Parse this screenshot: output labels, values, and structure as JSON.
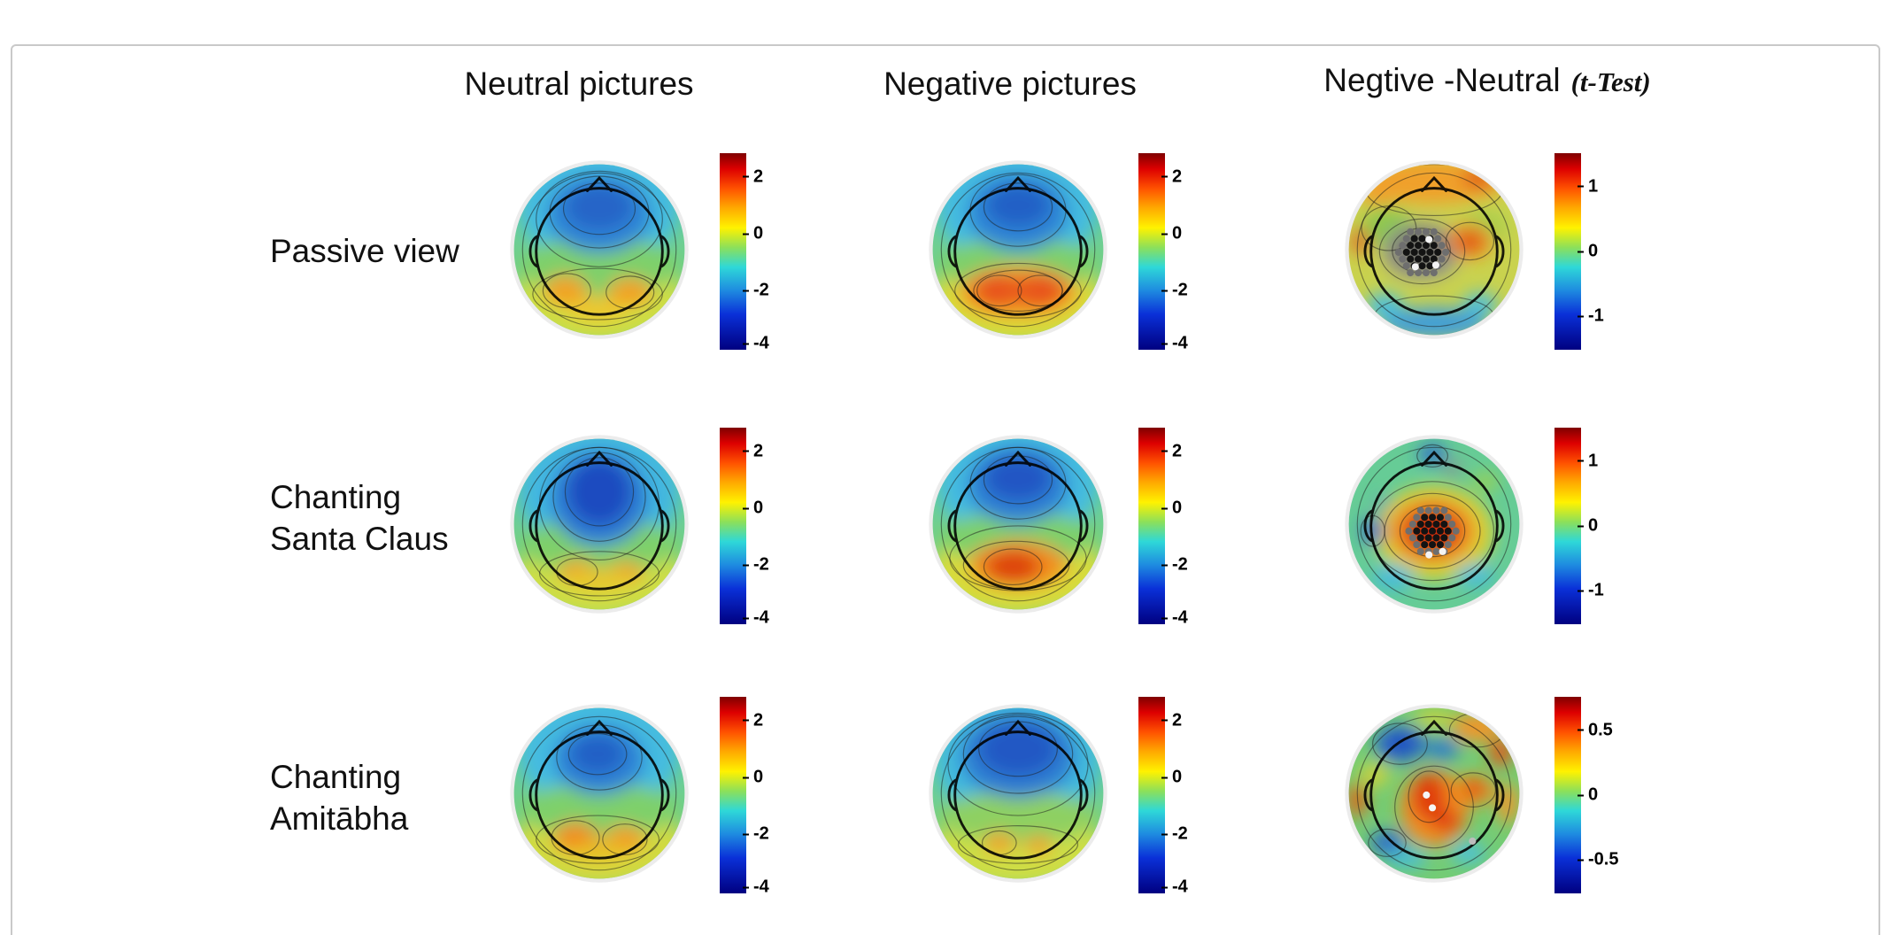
{
  "figure": {
    "background": "#ffffff",
    "frame_color": "#c9c9c9",
    "columns": [
      {
        "title": "Neutral pictures"
      },
      {
        "title": "Negative pictures"
      },
      {
        "title": "Negtive -Neutral",
        "annotation": "(t-Test)"
      }
    ],
    "rows": [
      {
        "label_lines": [
          "Passive view"
        ]
      },
      {
        "label_lines": [
          "Chanting",
          "Santa Claus"
        ]
      },
      {
        "label_lines": [
          "Chanting",
          "Amitābha"
        ]
      }
    ],
    "colormap": {
      "name": "jet",
      "stops": [
        "#7f0000",
        "#dd0000",
        "#ff5200",
        "#ffaa00",
        "#fff200",
        "#8ce05a",
        "#2ed8d8",
        "#1e8ae0",
        "#0a30d8",
        "#000080"
      ]
    },
    "cells": {
      "r0c0": {
        "variant": "pic-passive-neutral",
        "ticks": [
          "2",
          "0",
          "-2",
          "-4"
        ]
      },
      "r0c1": {
        "variant": "pic-passive-negative",
        "ticks": [
          "2",
          "0",
          "-2",
          "-4"
        ]
      },
      "r0c2": {
        "variant": "ttest-passive",
        "ticks": [
          "1",
          "0",
          "-1"
        ]
      },
      "r1c0": {
        "variant": "pic-santa-neutral",
        "ticks": [
          "2",
          "0",
          "-2",
          "-4"
        ]
      },
      "r1c1": {
        "variant": "pic-santa-negative",
        "ticks": [
          "2",
          "0",
          "-2",
          "-4"
        ]
      },
      "r1c2": {
        "variant": "ttest-santa",
        "ticks": [
          "1",
          "0",
          "-1"
        ]
      },
      "r2c0": {
        "variant": "pic-amitabha-neutral",
        "ticks": [
          "2",
          "0",
          "-2",
          "-4"
        ]
      },
      "r2c1": {
        "variant": "pic-amitabha-negative",
        "ticks": [
          "2",
          "0",
          "-2",
          "-4"
        ]
      },
      "r2c2": {
        "variant": "ttest-amitabha",
        "ticks": [
          "0.5",
          "0",
          "-0.5"
        ]
      }
    }
  }
}
